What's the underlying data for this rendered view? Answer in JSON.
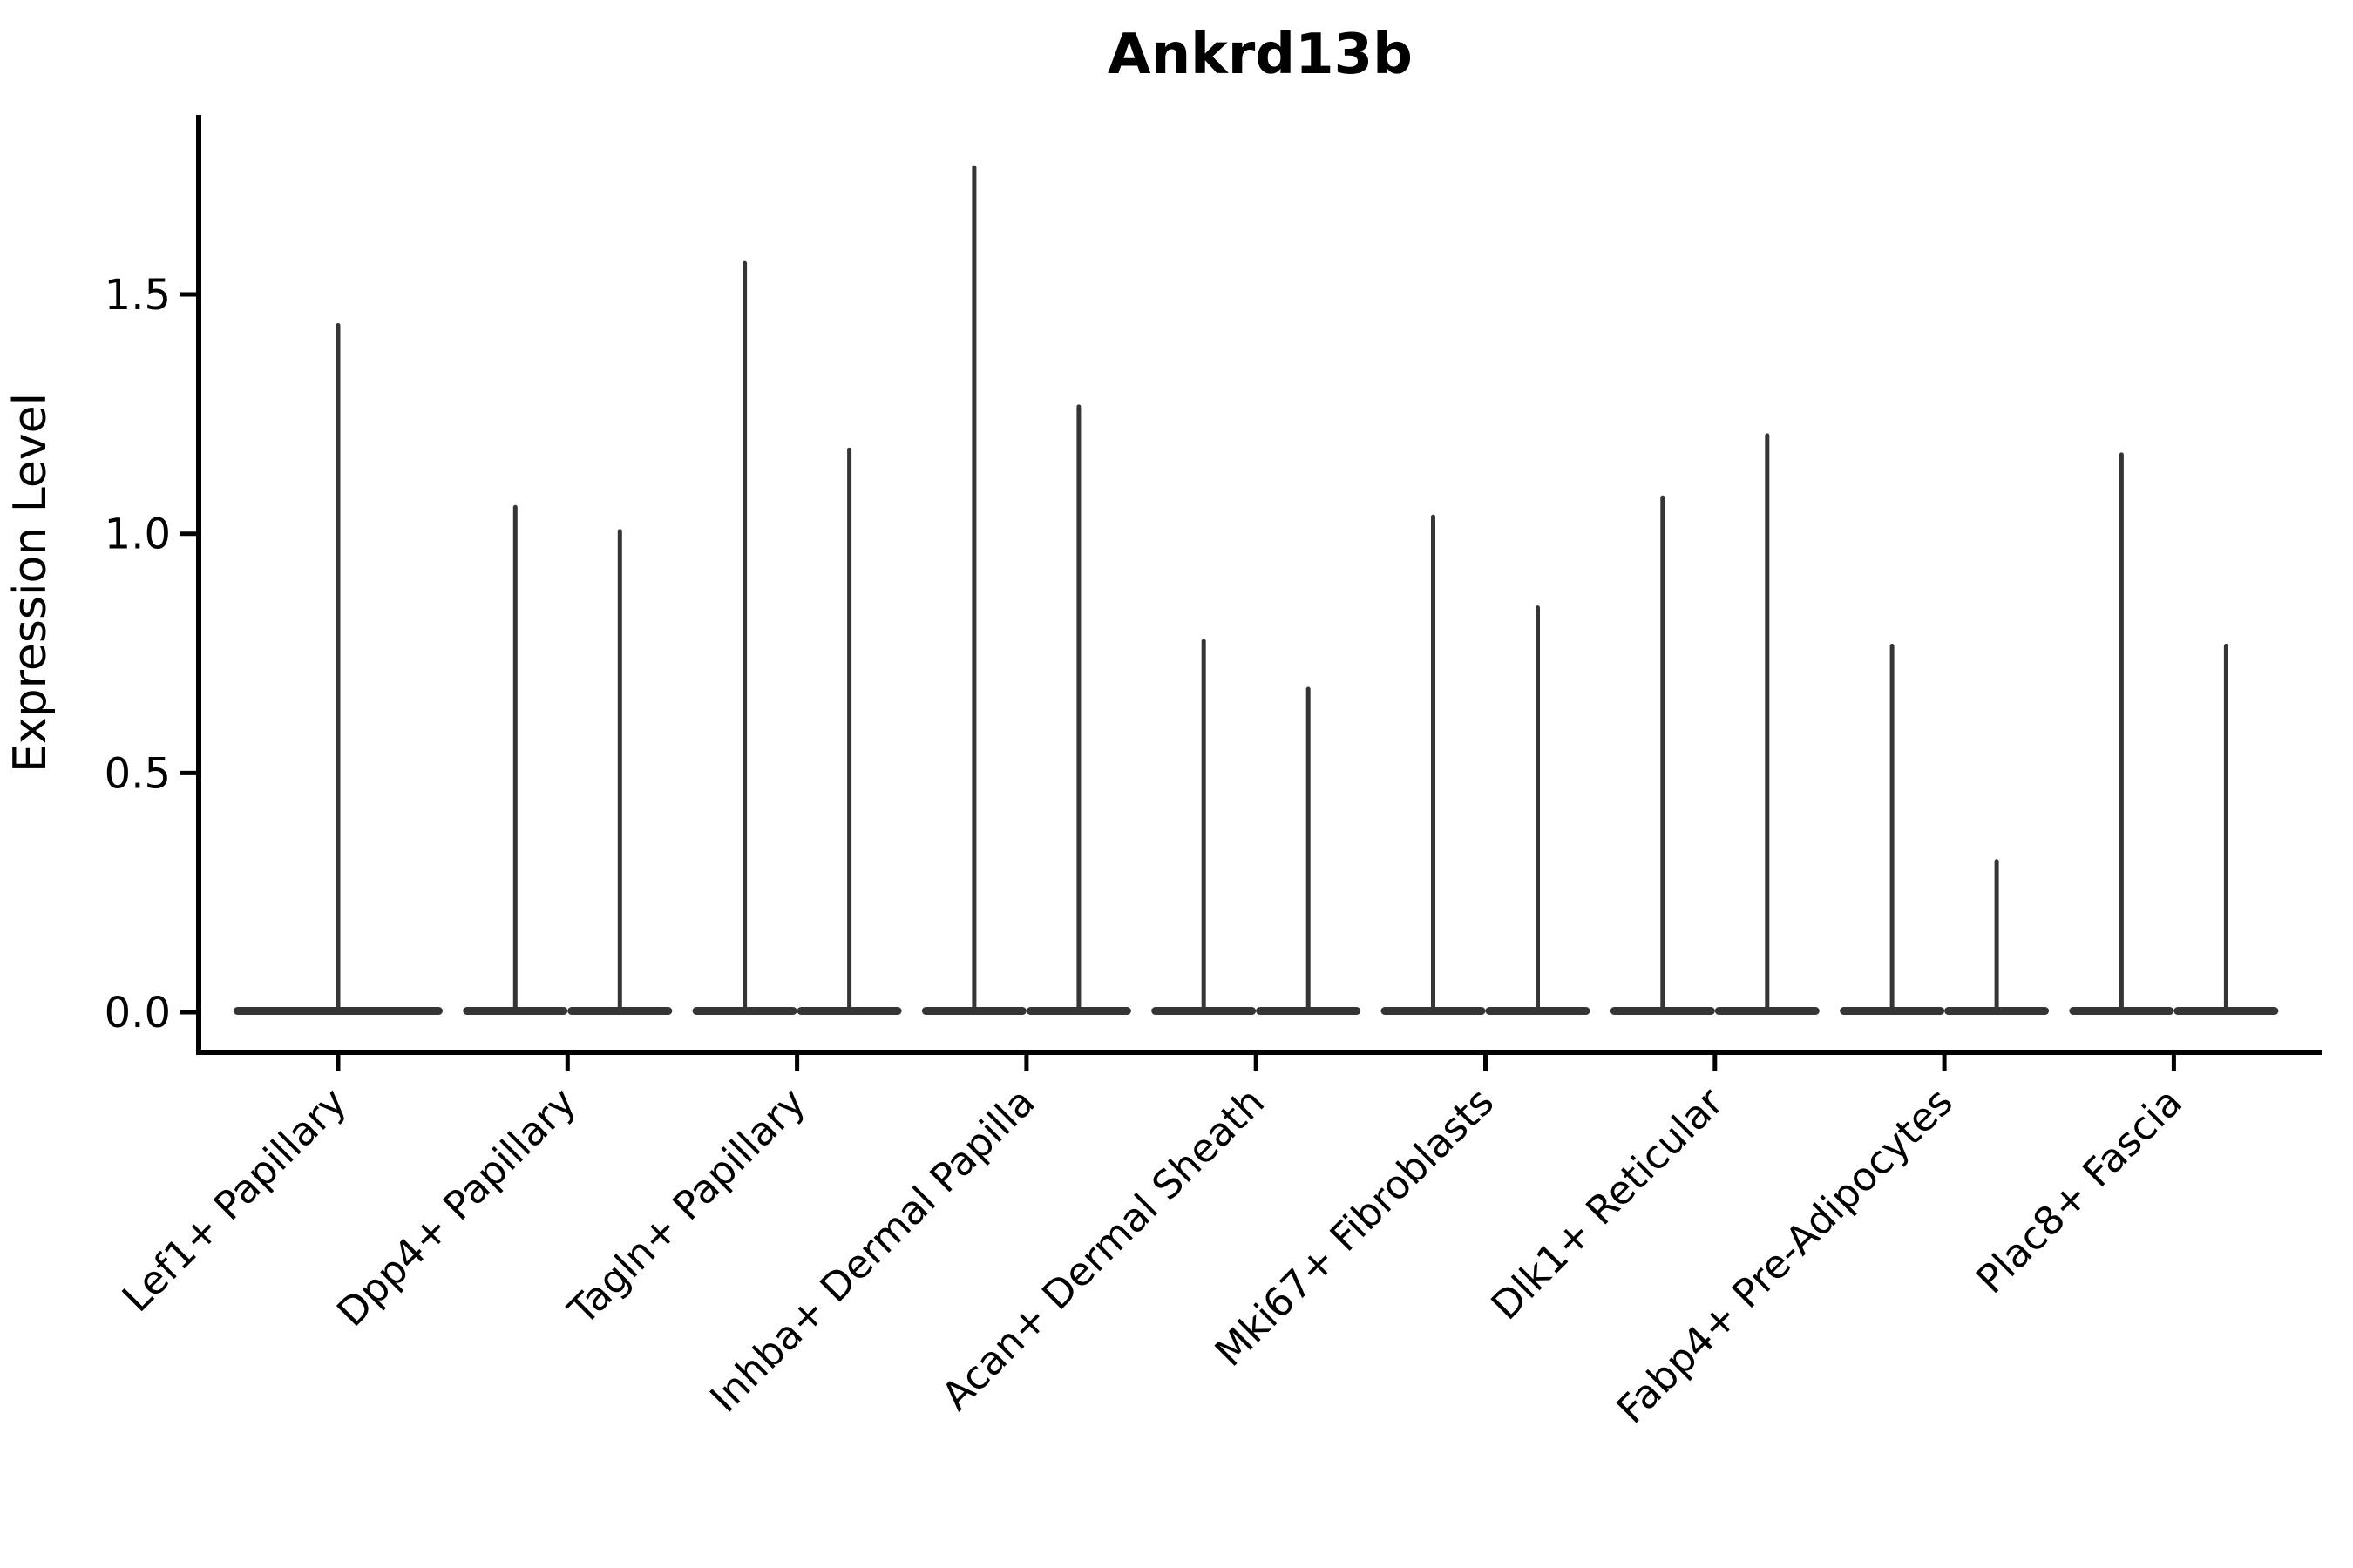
{
  "chart_data": {
    "type": "violin",
    "title": "Ankrd13b",
    "xlabel": "",
    "ylabel": "Expression Level",
    "grid": false,
    "legend": "none",
    "ylim": [
      -0.08,
      1.88
    ],
    "yticks": [
      "0.0",
      "0.5",
      "1.0",
      "1.5"
    ],
    "ytick_values": [
      0.0,
      0.5,
      1.0,
      1.5
    ],
    "violin_color": "#353535",
    "axis_color": "#000000",
    "categories": [
      "Lef1+ Papillary",
      "Dpp4+ Papillary",
      "Tagln+ Papillary",
      "Inhba+ Dermal Papilla",
      "Acan+ Dermal Sheath",
      "Mki67+ Fibroblasts",
      "Dlk1+ Reticular",
      "Fabp4+ Pre-Adipocytes",
      "Plac8+ Fascia"
    ],
    "xtick_rotation_deg": -45,
    "series_note": "Each violin is a near-zero-inflated expression distribution: wide flat body at 0 with a thin spike up to the max expression value. Categories 2-9 contain two side-by-side violins; category 1 contains one full-width violin.",
    "violins": [
      {
        "category": "Lef1+ Papillary",
        "items": [
          {
            "offset": 0,
            "halfwidth": 120,
            "max": 1.44
          }
        ]
      },
      {
        "category": "Dpp4+ Papillary",
        "items": [
          {
            "offset": -60,
            "halfwidth": 60,
            "max": 1.06
          },
          {
            "offset": 60,
            "halfwidth": 60,
            "max": 1.01
          }
        ]
      },
      {
        "category": "Tagln+ Papillary",
        "items": [
          {
            "offset": -60,
            "halfwidth": 60,
            "max": 1.57
          },
          {
            "offset": 60,
            "halfwidth": 60,
            "max": 1.18
          }
        ]
      },
      {
        "category": "Inhba+ Dermal Papilla",
        "items": [
          {
            "offset": -60,
            "halfwidth": 60,
            "max": 1.77
          },
          {
            "offset": 60,
            "halfwidth": 60,
            "max": 1.27
          }
        ]
      },
      {
        "category": "Acan+ Dermal Sheath",
        "items": [
          {
            "offset": -60,
            "halfwidth": 60,
            "max": 0.78
          },
          {
            "offset": 60,
            "halfwidth": 60,
            "max": 0.68
          }
        ]
      },
      {
        "category": "Mki67+ Fibroblasts",
        "items": [
          {
            "offset": -60,
            "halfwidth": 60,
            "max": 1.04
          },
          {
            "offset": 60,
            "halfwidth": 60,
            "max": 0.85
          }
        ]
      },
      {
        "category": "Dlk1+ Reticular",
        "items": [
          {
            "offset": -60,
            "halfwidth": 60,
            "max": 1.08
          },
          {
            "offset": 60,
            "halfwidth": 60,
            "max": 1.21
          }
        ]
      },
      {
        "category": "Fabp4+ Pre-Adipocytes",
        "items": [
          {
            "offset": -60,
            "halfwidth": 60,
            "max": 0.77
          },
          {
            "offset": 60,
            "halfwidth": 60,
            "max": 0.32
          }
        ]
      },
      {
        "category": "Plac8+ Fascia",
        "items": [
          {
            "offset": -60,
            "halfwidth": 60,
            "max": 1.17
          },
          {
            "offset": 60,
            "halfwidth": 60,
            "max": 0.77
          }
        ]
      }
    ]
  }
}
